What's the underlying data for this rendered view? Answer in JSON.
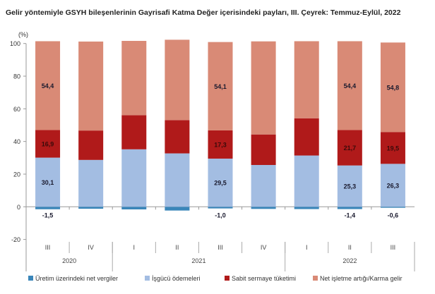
{
  "chart_data": {
    "type": "bar",
    "stacked": true,
    "title": "Gelir yöntemiyle GSYH bileşenlerinin Gayrisafi Katma Değer içerisindeki payları, III. Çeyrek: Temmuz-Eylül, 2022",
    "ylabel": "(%)",
    "ylim": [
      -20,
      100
    ],
    "yticks": [
      -20,
      0,
      20,
      40,
      60,
      80,
      100
    ],
    "grid": false,
    "legend": "bottom",
    "categories": [
      "III",
      "IV",
      "I",
      "II",
      "III",
      "IV",
      "I",
      "II",
      "III"
    ],
    "year_groups": [
      {
        "label": "2020",
        "span": 2
      },
      {
        "label": "2021",
        "span": 4
      },
      {
        "label": "2022",
        "span": 3
      }
    ],
    "series": [
      {
        "name": "Üretim üzerindeki net vergiler",
        "color": "#3a86b9",
        "values": [
          -1.5,
          -1.2,
          -1.6,
          -2.3,
          -1.0,
          -1.3,
          -1.4,
          -1.4,
          -0.6
        ],
        "labels": [
          "-1,5",
          "",
          "",
          "",
          "-1,0",
          "",
          "",
          "-1,4",
          "-0,6"
        ]
      },
      {
        "name": "İşgücü ödemeleri",
        "color": "#a3bde2",
        "values": [
          30.1,
          28.7,
          35.2,
          32.7,
          29.5,
          25.6,
          31.4,
          25.3,
          26.3
        ],
        "labels": [
          "30,1",
          "",
          "",
          "",
          "29,5",
          "",
          "",
          "25,3",
          "26,3"
        ]
      },
      {
        "name": "Sabit sermaye tüketimi",
        "color": "#b01a1a",
        "values": [
          16.9,
          18.0,
          20.9,
          20.4,
          17.3,
          18.7,
          22.8,
          21.7,
          19.5
        ],
        "labels": [
          "16,9",
          "",
          "",
          "",
          "17,3",
          "",
          "",
          "21,7",
          "19,5"
        ]
      },
      {
        "name": "Net işletme artığı/Karma gelir",
        "color": "#d98a76",
        "values": [
          54.4,
          54.5,
          45.5,
          49.2,
          54.1,
          57.0,
          47.2,
          54.4,
          54.8
        ],
        "labels": [
          "54,4",
          "",
          "",
          "",
          "54,1",
          "",
          "",
          "54,4",
          "54,8"
        ]
      }
    ]
  }
}
